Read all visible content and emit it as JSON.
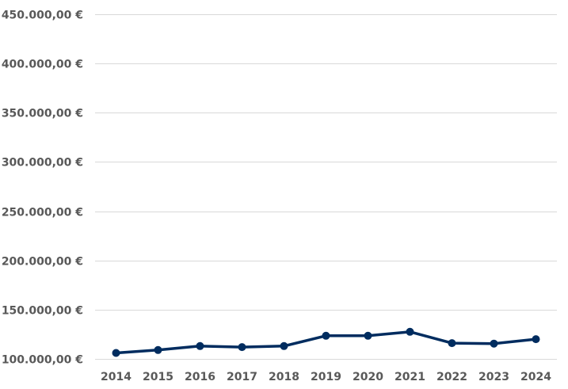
{
  "chart_data": {
    "type": "line",
    "title": "",
    "xlabel": "",
    "ylabel": "",
    "categories": [
      "2014",
      "2015",
      "2016",
      "2017",
      "2018",
      "2019",
      "2020",
      "2021",
      "2022",
      "2023",
      "2024"
    ],
    "series": [
      {
        "values": [
          106000,
          109000,
          113000,
          112000,
          113000,
          123500,
          123500,
          127500,
          116000,
          115500,
          120000
        ]
      }
    ],
    "ylim": [
      100000,
      450000
    ],
    "yticks": [
      100000,
      150000,
      200000,
      250000,
      300000,
      350000,
      400000,
      450000
    ],
    "ytick_labels": [
      "100.000,00 €",
      "150.000,00 €",
      "200.000,00 €",
      "250.000,00 €",
      "300.000,00 €",
      "350.000,00 €",
      "400.000,00 €",
      "450.000,00 €"
    ],
    "grid": true,
    "legend": "none",
    "series_color": "#002c5f",
    "grid_color": "#d9d9d9",
    "label_color": "#595959"
  }
}
